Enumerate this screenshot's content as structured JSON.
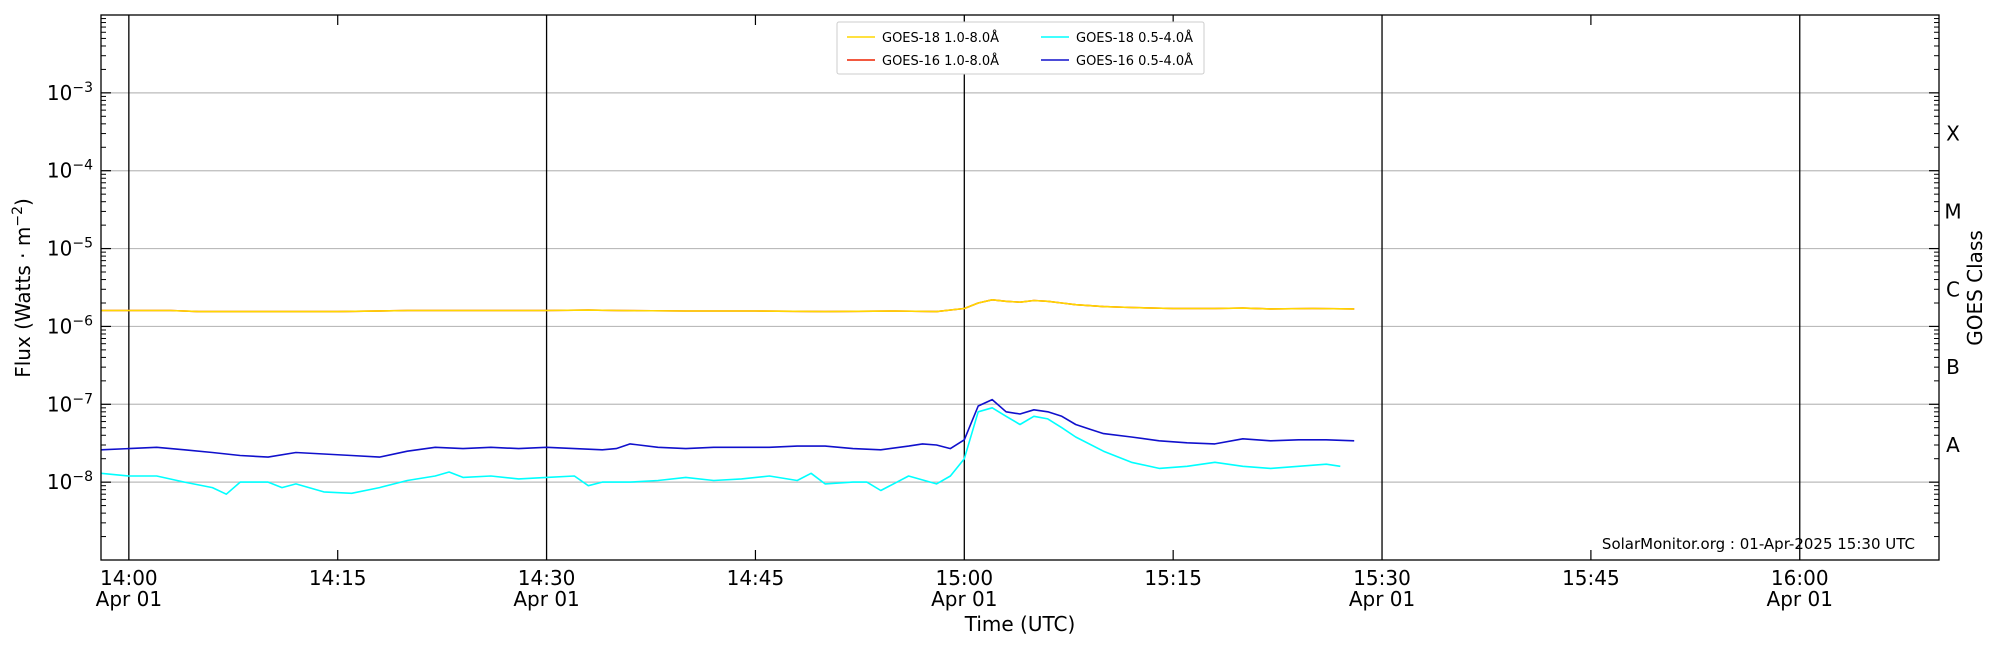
{
  "chart_data": {
    "type": "line",
    "xlabel": "Time (UTC)",
    "ylabel": "Flux (Watts · m",
    "ylabel_sup": "−2",
    "ylabel_close": ")",
    "y2label": "GOES Class",
    "yscale": "log",
    "xlim": [
      "13:58",
      "16:10"
    ],
    "ylim": [
      1e-09,
      0.01
    ],
    "grid": "horizontal",
    "legend_position": "top-center",
    "credit": "SolarMonitor.org : 01-Apr-2025 15:30 UTC",
    "x_ticks": [
      {
        "time": "14:00",
        "label": "14:00",
        "sub": "Apr 01",
        "major": true
      },
      {
        "time": "14:15",
        "label": "14:15",
        "sub": "",
        "major": false
      },
      {
        "time": "14:30",
        "label": "14:30",
        "sub": "Apr 01",
        "major": true
      },
      {
        "time": "14:45",
        "label": "14:45",
        "sub": "",
        "major": false
      },
      {
        "time": "15:00",
        "label": "15:00",
        "sub": "Apr 01",
        "major": true
      },
      {
        "time": "15:15",
        "label": "15:15",
        "sub": "",
        "major": false
      },
      {
        "time": "15:30",
        "label": "15:30",
        "sub": "Apr 01",
        "major": true
      },
      {
        "time": "15:45",
        "label": "15:45",
        "sub": "",
        "major": false
      },
      {
        "time": "16:00",
        "label": "16:00",
        "sub": "Apr 01",
        "major": true
      }
    ],
    "y_ticks": [
      {
        "value": 1e-08,
        "base": "10",
        "exp": "−8"
      },
      {
        "value": 1e-07,
        "base": "10",
        "exp": "−7"
      },
      {
        "value": 1e-06,
        "base": "10",
        "exp": "−6"
      },
      {
        "value": 1e-05,
        "base": "10",
        "exp": "−5"
      },
      {
        "value": 0.0001,
        "base": "10",
        "exp": "−4"
      },
      {
        "value": 0.001,
        "base": "10",
        "exp": "−3"
      }
    ],
    "goes_classes": [
      {
        "label": "A",
        "value": 3e-08
      },
      {
        "label": "B",
        "value": 3e-07
      },
      {
        "label": "C",
        "value": 3e-06
      },
      {
        "label": "M",
        "value": 3e-05
      },
      {
        "label": "X",
        "value": 0.0003
      }
    ],
    "legend": [
      {
        "name": "GOES-18 1.0-8.0Å",
        "color": "#ffd700"
      },
      {
        "name": "GOES-18 0.5-4.0Å",
        "color": "#00ffff"
      },
      {
        "name": "GOES-16 1.0-8.0Å",
        "color": "#ee2200"
      },
      {
        "name": "GOES-16 0.5-4.0Å",
        "color": "#1010cc"
      }
    ],
    "series": [
      {
        "name": "GOES-16 1.0-8.0Å",
        "color": "#ee2200",
        "x": [
          "13:58",
          "14:00",
          "14:03",
          "14:05",
          "14:10",
          "14:15",
          "14:20",
          "14:25",
          "14:30",
          "14:33",
          "14:35",
          "14:40",
          "14:45",
          "14:50",
          "14:55",
          "14:58",
          "15:00",
          "15:01",
          "15:02",
          "15:03",
          "15:04",
          "15:05",
          "15:06",
          "15:07",
          "15:08",
          "15:10",
          "15:12",
          "15:15",
          "15:18",
          "15:20",
          "15:22",
          "15:25",
          "15:28"
        ],
        "values": [
          1.6e-06,
          1.6e-06,
          1.6e-06,
          1.55e-06,
          1.55e-06,
          1.55e-06,
          1.6e-06,
          1.6e-06,
          1.6e-06,
          1.62e-06,
          1.6e-06,
          1.58e-06,
          1.58e-06,
          1.55e-06,
          1.58e-06,
          1.55e-06,
          1.7e-06,
          2e-06,
          2.2e-06,
          2.1e-06,
          2.05e-06,
          2.15e-06,
          2.1e-06,
          2e-06,
          1.9e-06,
          1.8e-06,
          1.75e-06,
          1.7e-06,
          1.7e-06,
          1.72e-06,
          1.68e-06,
          1.7e-06,
          1.68e-06
        ]
      },
      {
        "name": "GOES-18 1.0-8.0Å",
        "color": "#ffd700",
        "x": [
          "13:58",
          "14:00",
          "14:03",
          "14:05",
          "14:10",
          "14:15",
          "14:20",
          "14:25",
          "14:30",
          "14:33",
          "14:35",
          "14:40",
          "14:45",
          "14:50",
          "14:55",
          "14:58",
          "15:00",
          "15:01",
          "15:02",
          "15:03",
          "15:04",
          "15:05",
          "15:06",
          "15:07",
          "15:08",
          "15:10",
          "15:12",
          "15:15",
          "15:18",
          "15:20",
          "15:22",
          "15:25",
          "15:28"
        ],
        "values": [
          1.6e-06,
          1.6e-06,
          1.6e-06,
          1.55e-06,
          1.55e-06,
          1.55e-06,
          1.6e-06,
          1.6e-06,
          1.6e-06,
          1.62e-06,
          1.6e-06,
          1.58e-06,
          1.58e-06,
          1.55e-06,
          1.58e-06,
          1.55e-06,
          1.7e-06,
          2e-06,
          2.2e-06,
          2.1e-06,
          2.05e-06,
          2.15e-06,
          2.1e-06,
          2e-06,
          1.9e-06,
          1.8e-06,
          1.75e-06,
          1.7e-06,
          1.7e-06,
          1.72e-06,
          1.68e-06,
          1.7e-06,
          1.68e-06
        ]
      },
      {
        "name": "GOES-16 0.5-4.0Å",
        "color": "#1010cc",
        "x": [
          "13:58",
          "14:00",
          "14:02",
          "14:04",
          "14:06",
          "14:08",
          "14:10",
          "14:12",
          "14:14",
          "14:16",
          "14:18",
          "14:20",
          "14:22",
          "14:24",
          "14:26",
          "14:28",
          "14:30",
          "14:32",
          "14:34",
          "14:35",
          "14:36",
          "14:38",
          "14:40",
          "14:42",
          "14:44",
          "14:46",
          "14:48",
          "14:50",
          "14:52",
          "14:54",
          "14:56",
          "14:57",
          "14:58",
          "14:59",
          "15:00",
          "15:01",
          "15:02",
          "15:03",
          "15:04",
          "15:05",
          "15:06",
          "15:07",
          "15:08",
          "15:09",
          "15:10",
          "15:12",
          "15:14",
          "15:16",
          "15:18",
          "15:20",
          "15:22",
          "15:24",
          "15:26",
          "15:28"
        ],
        "values": [
          2.6e-08,
          2.7e-08,
          2.8e-08,
          2.6e-08,
          2.4e-08,
          2.2e-08,
          2.1e-08,
          2.4e-08,
          2.3e-08,
          2.2e-08,
          2.1e-08,
          2.5e-08,
          2.8e-08,
          2.7e-08,
          2.8e-08,
          2.7e-08,
          2.8e-08,
          2.7e-08,
          2.6e-08,
          2.7e-08,
          3.1e-08,
          2.8e-08,
          2.7e-08,
          2.8e-08,
          2.8e-08,
          2.8e-08,
          2.9e-08,
          2.9e-08,
          2.7e-08,
          2.6e-08,
          2.9e-08,
          3.1e-08,
          3e-08,
          2.7e-08,
          3.5e-08,
          9.5e-08,
          1.15e-07,
          8e-08,
          7.5e-08,
          8.5e-08,
          8e-08,
          7e-08,
          5.5e-08,
          4.8e-08,
          4.2e-08,
          3.8e-08,
          3.4e-08,
          3.2e-08,
          3.1e-08,
          3.6e-08,
          3.4e-08,
          3.5e-08,
          3.5e-08,
          3.4e-08
        ]
      },
      {
        "name": "GOES-18 0.5-4.0Å",
        "color": "#00ffff",
        "x": [
          "13:58",
          "14:00",
          "14:02",
          "14:04",
          "14:06",
          "14:07",
          "14:08",
          "14:10",
          "14:11",
          "14:12",
          "14:14",
          "14:16",
          "14:18",
          "14:20",
          "14:22",
          "14:23",
          "14:24",
          "14:26",
          "14:28",
          "14:30",
          "14:32",
          "14:33",
          "14:34",
          "14:36",
          "14:38",
          "14:40",
          "14:42",
          "14:44",
          "14:46",
          "14:48",
          "14:49",
          "14:50",
          "14:52",
          "14:53",
          "14:54",
          "14:56",
          "14:58",
          "14:59",
          "15:00",
          "15:01",
          "15:02",
          "15:03",
          "15:04",
          "15:05",
          "15:06",
          "15:07",
          "15:08",
          "15:10",
          "15:12",
          "15:14",
          "15:16",
          "15:18",
          "15:20",
          "15:22",
          "15:24",
          "15:26",
          "15:27"
        ],
        "values": [
          1.3e-08,
          1.2e-08,
          1.2e-08,
          1e-08,
          8.5e-09,
          7e-09,
          1e-08,
          1e-08,
          8.5e-09,
          9.5e-09,
          7.5e-09,
          7.2e-09,
          8.5e-09,
          1.05e-08,
          1.2e-08,
          1.35e-08,
          1.15e-08,
          1.2e-08,
          1.1e-08,
          1.15e-08,
          1.2e-08,
          9e-09,
          1e-08,
          1e-08,
          1.05e-08,
          1.15e-08,
          1.05e-08,
          1.1e-08,
          1.2e-08,
          1.05e-08,
          1.3e-08,
          9.5e-09,
          1e-08,
          1e-08,
          7.8e-09,
          1.2e-08,
          9.5e-09,
          1.2e-08,
          2e-08,
          8e-08,
          9e-08,
          7e-08,
          5.5e-08,
          7e-08,
          6.5e-08,
          5e-08,
          3.8e-08,
          2.5e-08,
          1.8e-08,
          1.5e-08,
          1.6e-08,
          1.8e-08,
          1.6e-08,
          1.5e-08,
          1.6e-08,
          1.7e-08,
          1.6e-08
        ]
      }
    ]
  }
}
